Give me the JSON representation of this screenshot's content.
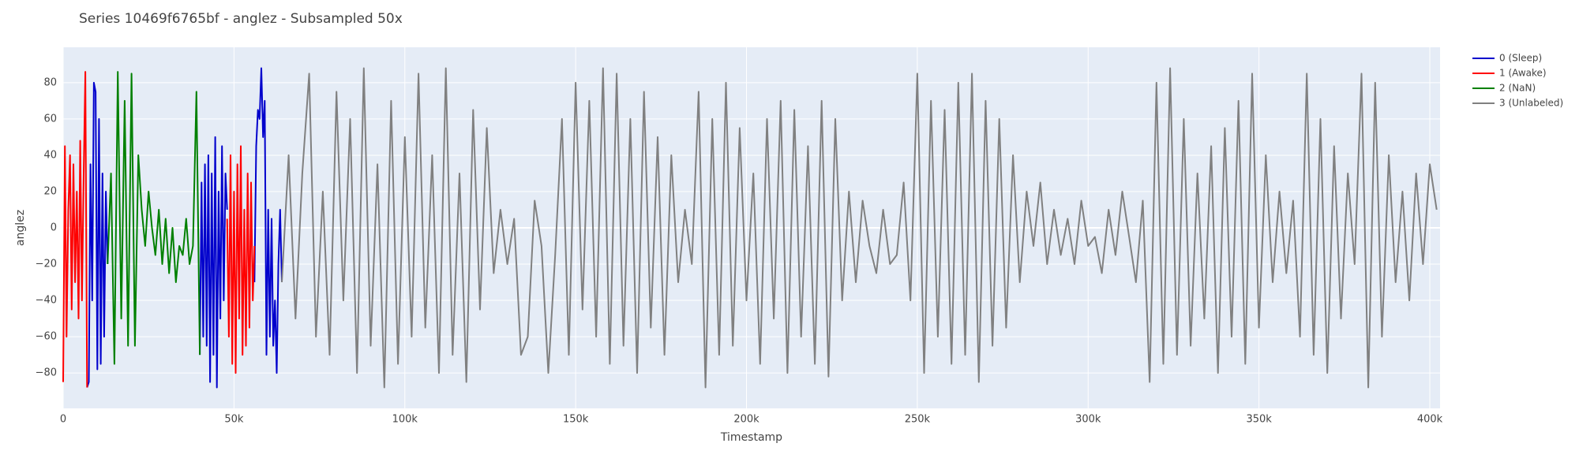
{
  "chart_data": {
    "type": "line",
    "title": "Series 10469f6765bf - anglez - Subsampled 50x",
    "x_label": "Timestamp",
    "y_label": "anglez",
    "xlim": [
      0,
      403000
    ],
    "ylim": [
      -99.5,
      99.5
    ],
    "xticks": [
      {
        "value": 0,
        "label": "0"
      },
      {
        "value": 50000,
        "label": "50k"
      },
      {
        "value": 100000,
        "label": "100k"
      },
      {
        "value": 150000,
        "label": "150k"
      },
      {
        "value": 200000,
        "label": "200k"
      },
      {
        "value": 250000,
        "label": "250k"
      },
      {
        "value": 300000,
        "label": "300k"
      },
      {
        "value": 350000,
        "label": "350k"
      },
      {
        "value": 400000,
        "label": "400k"
      }
    ],
    "yticks": [
      {
        "value": -80,
        "label": "−80"
      },
      {
        "value": -60,
        "label": "−60"
      },
      {
        "value": -40,
        "label": "−40"
      },
      {
        "value": -20,
        "label": "−20"
      },
      0,
      20,
      40,
      60,
      80
    ],
    "grid": true,
    "legend": "top-right",
    "series": [
      {
        "name": "0 (Sleep)",
        "color": "#0000cc",
        "x": [
          7000,
          7500,
          8000,
          8500,
          9000,
          9500,
          10000,
          10500,
          11000,
          11500,
          12000,
          12500,
          13000,
          20000,
          40000,
          40500,
          41000,
          41500,
          42000,
          42500,
          43000,
          43500,
          44000,
          44500,
          45000,
          45500,
          46000,
          46500,
          47000,
          47500,
          48000,
          52000,
          56000,
          56500,
          57000,
          57500,
          58000,
          58500,
          59000,
          59500,
          60000,
          60500,
          61000,
          61500,
          62000,
          62500,
          63000,
          63500,
          64000
        ],
        "values": [
          -88,
          -85,
          35,
          -40,
          80,
          75,
          -78,
          60,
          -75,
          30,
          -60,
          20,
          -20,
          null,
          -70,
          25,
          -60,
          35,
          -65,
          40,
          -85,
          30,
          -70,
          50,
          -88,
          20,
          -50,
          45,
          -40,
          30,
          10,
          null,
          -30,
          45,
          65,
          60,
          88,
          50,
          70,
          -70,
          10,
          -60,
          5,
          -65,
          -40,
          -80,
          -20,
          10,
          -30
        ]
      },
      {
        "name": "1 (Awake)",
        "color": "#ff0000",
        "x": [
          0,
          500,
          1000,
          1500,
          2000,
          2500,
          3000,
          3500,
          4000,
          4500,
          5000,
          5500,
          6000,
          6500,
          7000,
          30000,
          48000,
          48500,
          49000,
          49500,
          50000,
          50500,
          51000,
          51500,
          52000,
          52500,
          53000,
          53500,
          54000,
          54500,
          55000,
          55500,
          56000
        ],
        "values": [
          -85,
          45,
          -60,
          10,
          40,
          -45,
          35,
          -30,
          20,
          -50,
          48,
          -40,
          30,
          86,
          -88,
          null,
          5,
          -60,
          40,
          -75,
          20,
          -80,
          35,
          -50,
          45,
          -70,
          10,
          -65,
          30,
          -55,
          25,
          -40,
          -10
        ]
      },
      {
        "name": "2 (NaN)",
        "color": "#008000",
        "x": [
          13000,
          14000,
          15000,
          16000,
          17000,
          18000,
          19000,
          20000,
          21000,
          22000,
          23000,
          24000,
          25000,
          26000,
          27000,
          28000,
          29000,
          30000,
          31000,
          32000,
          33000,
          34000,
          35000,
          36000,
          37000,
          38000,
          39000,
          40000
        ],
        "values": [
          -20,
          30,
          -75,
          86,
          -50,
          70,
          -65,
          85,
          -65,
          40,
          10,
          -10,
          20,
          0,
          -15,
          10,
          -20,
          5,
          -25,
          0,
          -30,
          -10,
          -15,
          5,
          -20,
          -10,
          75,
          -70
        ]
      },
      {
        "name": "3 (Unlabeled)",
        "color": "#808080",
        "x": [
          64000,
          66000,
          68000,
          70000,
          72000,
          74000,
          76000,
          78000,
          80000,
          82000,
          84000,
          86000,
          88000,
          90000,
          92000,
          94000,
          96000,
          98000,
          100000,
          102000,
          104000,
          106000,
          108000,
          110000,
          112000,
          114000,
          116000,
          118000,
          120000,
          122000,
          124000,
          126000,
          128000,
          130000,
          132000,
          134000,
          136000,
          138000,
          140000,
          142000,
          144000,
          146000,
          148000,
          150000,
          152000,
          154000,
          156000,
          158000,
          160000,
          162000,
          164000,
          166000,
          168000,
          170000,
          172000,
          174000,
          176000,
          178000,
          180000,
          182000,
          184000,
          186000,
          188000,
          190000,
          192000,
          194000,
          196000,
          198000,
          200000,
          202000,
          204000,
          206000,
          208000,
          210000,
          212000,
          214000,
          216000,
          218000,
          220000,
          222000,
          224000,
          226000,
          228000,
          230000,
          232000,
          234000,
          236000,
          238000,
          240000,
          242000,
          244000,
          246000,
          248000,
          250000,
          252000,
          254000,
          256000,
          258000,
          260000,
          262000,
          264000,
          266000,
          268000,
          270000,
          272000,
          274000,
          276000,
          278000,
          280000,
          282000,
          284000,
          286000,
          288000,
          290000,
          292000,
          294000,
          296000,
          298000,
          300000,
          302000,
          304000,
          306000,
          308000,
          310000,
          312000,
          314000,
          316000,
          318000,
          320000,
          322000,
          324000,
          326000,
          328000,
          330000,
          332000,
          334000,
          336000,
          338000,
          340000,
          342000,
          344000,
          346000,
          348000,
          350000,
          352000,
          354000,
          356000,
          358000,
          360000,
          362000,
          364000,
          366000,
          368000,
          370000,
          372000,
          374000,
          376000,
          378000,
          380000,
          382000,
          384000,
          386000,
          388000,
          390000,
          392000,
          394000,
          396000,
          398000,
          400000,
          402000
        ],
        "values": [
          -30,
          40,
          -50,
          30,
          85,
          -60,
          20,
          -70,
          75,
          -40,
          60,
          -80,
          88,
          -65,
          35,
          -88,
          70,
          -75,
          50,
          -60,
          85,
          -55,
          40,
          -80,
          88,
          -70,
          30,
          -85,
          65,
          -45,
          55,
          -25,
          10,
          -20,
          5,
          -70,
          -60,
          15,
          -10,
          -80,
          -15,
          60,
          -70,
          80,
          -45,
          70,
          -60,
          88,
          -75,
          85,
          -65,
          60,
          -80,
          75,
          -55,
          50,
          -70,
          40,
          -30,
          10,
          -20,
          75,
          -88,
          60,
          -70,
          80,
          -65,
          55,
          -40,
          30,
          -75,
          60,
          -50,
          70,
          -80,
          65,
          -60,
          45,
          -75,
          70,
          -82,
          60,
          -40,
          20,
          -30,
          15,
          -10,
          -25,
          10,
          -20,
          -15,
          25,
          -40,
          85,
          -80,
          70,
          -60,
          65,
          -75,
          80,
          -70,
          85,
          -85,
          70,
          -65,
          60,
          -55,
          40,
          -30,
          20,
          -10,
          25,
          -20,
          10,
          -15,
          5,
          -20,
          15,
          -10,
          -5,
          -25,
          10,
          -15,
          20,
          -5,
          -30,
          15,
          -85,
          80,
          -75,
          88,
          -70,
          60,
          -65,
          30,
          -50,
          45,
          -80,
          55,
          -60,
          70,
          -75,
          85,
          -55,
          40,
          -30,
          20,
          -25,
          15,
          -60,
          85,
          -70,
          60,
          -80,
          45,
          -50,
          30,
          -20,
          85,
          -88,
          80,
          -60,
          40,
          -30,
          20,
          -40,
          30,
          -20,
          35,
          10
        ]
      }
    ]
  }
}
